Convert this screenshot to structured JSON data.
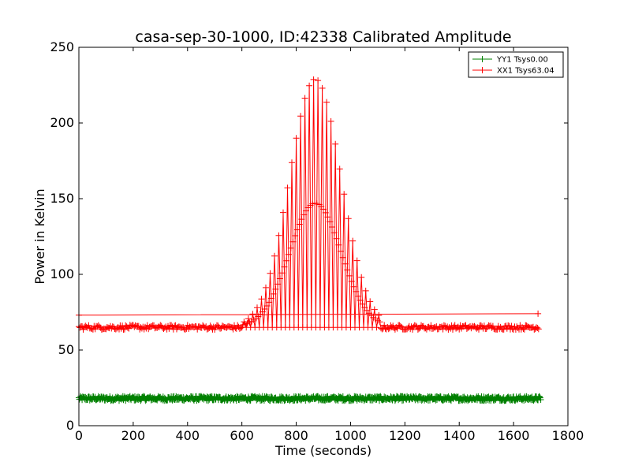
{
  "chart_data": {
    "type": "line",
    "title": "casa-sep-30-1000, ID:42338 Calibrated Amplitude",
    "xlabel": "Time (seconds)",
    "ylabel": "Power in Kelvin",
    "xlim": [
      0,
      1800
    ],
    "ylim": [
      0,
      250
    ],
    "xticks": [
      0,
      200,
      400,
      600,
      800,
      1000,
      1200,
      1400,
      1600,
      1800
    ],
    "yticks": [
      0,
      50,
      100,
      150,
      200,
      250
    ],
    "legend_position": "top-right",
    "series": [
      {
        "name": "YY1 Tsys0.00",
        "color": "#008000",
        "marker": "+",
        "x_range": [
          0,
          1700
        ],
        "baseline": 18,
        "spread": 1.5
      },
      {
        "name": "XX1 Tsys63.04",
        "color": "#ff0000",
        "marker": "+",
        "x_range": [
          0,
          1695
        ],
        "baseline": 65,
        "spread": 1.5,
        "peak": {
          "x": 870,
          "y": 229,
          "start": 600,
          "end": 1110
        },
        "edge_spikes": [
          {
            "x": 0,
            "y": 73
          },
          {
            "x": 1690,
            "y": 74
          }
        ]
      }
    ]
  }
}
